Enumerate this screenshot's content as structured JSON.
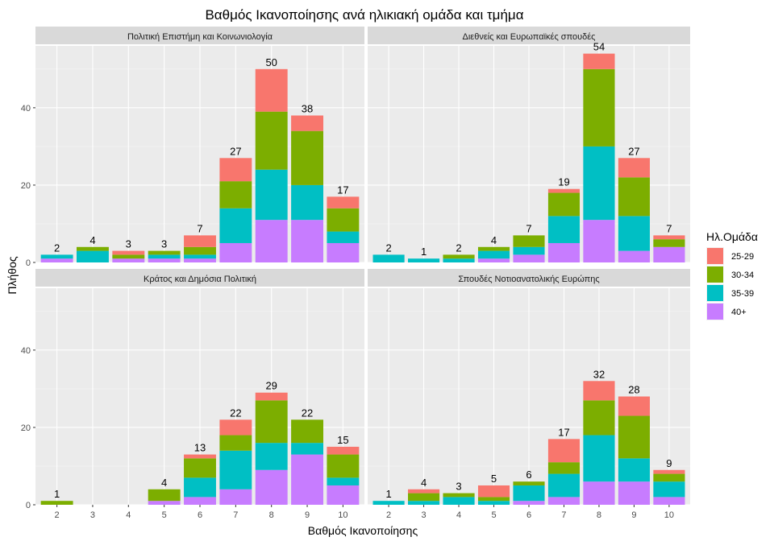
{
  "chart_data": {
    "type": "bar",
    "stacked": true,
    "title": "Βαθμός Ικανοποίησης ανά ηλικιακή ομάδα και τμήμα",
    "xlabel": "Βαθμός Ικανοποίησης",
    "ylabel": "Πλήθος",
    "x_ticks": [
      "2",
      "3",
      "4",
      "5",
      "6",
      "7",
      "8",
      "9",
      "10"
    ],
    "y_ticks": [
      "0",
      "20",
      "40"
    ],
    "ylim": [
      0,
      56
    ],
    "grid": true,
    "legend": {
      "title": "Ηλ.Ομάδα",
      "position": "right",
      "entries": [
        {
          "name": "25-29",
          "color": "#F8766D"
        },
        {
          "name": "30-34",
          "color": "#7CAE00"
        },
        {
          "name": "35-39",
          "color": "#00BFC4"
        },
        {
          "name": "40+",
          "color": "#C77CFF"
        }
      ]
    },
    "stack_order": [
      "40+",
      "35-39",
      "30-34",
      "25-29"
    ],
    "panels": [
      {
        "title": "Πολιτική Επιστήμη και Κοινωνιολογία",
        "bars": [
          {
            "x": "2",
            "total": "2",
            "values": {
              "40+": 1,
              "35-39": 1,
              "30-34": 0,
              "25-29": 0
            }
          },
          {
            "x": "3",
            "total": "4",
            "values": {
              "40+": 0,
              "35-39": 3,
              "30-34": 1,
              "25-29": 0
            }
          },
          {
            "x": "4",
            "total": "3",
            "values": {
              "40+": 1,
              "35-39": 0,
              "30-34": 1,
              "25-29": 1
            }
          },
          {
            "x": "5",
            "total": "3",
            "values": {
              "40+": 1,
              "35-39": 1,
              "30-34": 1,
              "25-29": 0
            }
          },
          {
            "x": "6",
            "total": "7",
            "values": {
              "40+": 1,
              "35-39": 1,
              "30-34": 2,
              "25-29": 3
            }
          },
          {
            "x": "7",
            "total": "27",
            "values": {
              "40+": 5,
              "35-39": 9,
              "30-34": 7,
              "25-29": 6
            }
          },
          {
            "x": "8",
            "total": "50",
            "values": {
              "40+": 11,
              "35-39": 13,
              "30-34": 15,
              "25-29": 11
            }
          },
          {
            "x": "9",
            "total": "38",
            "values": {
              "40+": 11,
              "35-39": 9,
              "30-34": 14,
              "25-29": 4
            }
          },
          {
            "x": "10",
            "total": "17",
            "values": {
              "40+": 5,
              "35-39": 3,
              "30-34": 6,
              "25-29": 3
            }
          }
        ]
      },
      {
        "title": "Διεθνείς και Ευρωπαϊκές σπουδές",
        "bars": [
          {
            "x": "2",
            "total": "2",
            "values": {
              "40+": 0,
              "35-39": 2,
              "30-34": 0,
              "25-29": 0
            }
          },
          {
            "x": "3",
            "total": "1",
            "values": {
              "40+": 0,
              "35-39": 1,
              "30-34": 0,
              "25-29": 0
            }
          },
          {
            "x": "4",
            "total": "2",
            "values": {
              "40+": 0,
              "35-39": 1,
              "30-34": 1,
              "25-29": 0
            }
          },
          {
            "x": "5",
            "total": "4",
            "values": {
              "40+": 1,
              "35-39": 2,
              "30-34": 1,
              "25-29": 0
            }
          },
          {
            "x": "6",
            "total": "7",
            "values": {
              "40+": 2,
              "35-39": 2,
              "30-34": 3,
              "25-29": 0
            }
          },
          {
            "x": "7",
            "total": "19",
            "values": {
              "40+": 5,
              "35-39": 7,
              "30-34": 6,
              "25-29": 1
            }
          },
          {
            "x": "8",
            "total": "54",
            "values": {
              "40+": 11,
              "35-39": 19,
              "30-34": 20,
              "25-29": 4
            }
          },
          {
            "x": "9",
            "total": "27",
            "values": {
              "40+": 3,
              "35-39": 9,
              "30-34": 10,
              "25-29": 5
            }
          },
          {
            "x": "10",
            "total": "7",
            "values": {
              "40+": 4,
              "35-39": 0,
              "30-34": 2,
              "25-29": 1
            }
          }
        ]
      },
      {
        "title": "Κράτος και Δημόσια Πολιτική",
        "bars": [
          {
            "x": "2",
            "total": "1",
            "values": {
              "40+": 0,
              "35-39": 0,
              "30-34": 1,
              "25-29": 0
            }
          },
          {
            "x": "5",
            "total": "4",
            "values": {
              "40+": 1,
              "35-39": 0,
              "30-34": 3,
              "25-29": 0
            }
          },
          {
            "x": "6",
            "total": "13",
            "values": {
              "40+": 2,
              "35-39": 5,
              "30-34": 5,
              "25-29": 1
            }
          },
          {
            "x": "7",
            "total": "22",
            "values": {
              "40+": 4,
              "35-39": 10,
              "30-34": 4,
              "25-29": 4
            }
          },
          {
            "x": "8",
            "total": "29",
            "values": {
              "40+": 9,
              "35-39": 7,
              "30-34": 11,
              "25-29": 2
            }
          },
          {
            "x": "9",
            "total": "22",
            "values": {
              "40+": 13,
              "35-39": 3,
              "30-34": 6,
              "25-29": 0
            }
          },
          {
            "x": "10",
            "total": "15",
            "values": {
              "40+": 5,
              "35-39": 2,
              "30-34": 6,
              "25-29": 2
            }
          }
        ]
      },
      {
        "title": "Σπουδές Νοτιοανατολικής Ευρώπης",
        "bars": [
          {
            "x": "2",
            "total": "1",
            "values": {
              "40+": 0,
              "35-39": 1,
              "30-34": 0,
              "25-29": 0
            }
          },
          {
            "x": "3",
            "total": "4",
            "values": {
              "40+": 0,
              "35-39": 1,
              "30-34": 2,
              "25-29": 1
            }
          },
          {
            "x": "4",
            "total": "3",
            "values": {
              "40+": 0,
              "35-39": 2,
              "30-34": 1,
              "25-29": 0
            }
          },
          {
            "x": "5",
            "total": "5",
            "values": {
              "40+": 0,
              "35-39": 1,
              "30-34": 1,
              "25-29": 3
            }
          },
          {
            "x": "6",
            "total": "6",
            "values": {
              "40+": 1,
              "35-39": 4,
              "30-34": 1,
              "25-29": 0
            }
          },
          {
            "x": "7",
            "total": "17",
            "values": {
              "40+": 2,
              "35-39": 6,
              "30-34": 3,
              "25-29": 6
            }
          },
          {
            "x": "8",
            "total": "32",
            "values": {
              "40+": 6,
              "35-39": 12,
              "30-34": 9,
              "25-29": 5
            }
          },
          {
            "x": "9",
            "total": "28",
            "values": {
              "40+": 6,
              "35-39": 6,
              "30-34": 11,
              "25-29": 5
            }
          },
          {
            "x": "10",
            "total": "9",
            "values": {
              "40+": 2,
              "35-39": 4,
              "30-34": 2,
              "25-29": 1
            }
          }
        ]
      }
    ]
  }
}
